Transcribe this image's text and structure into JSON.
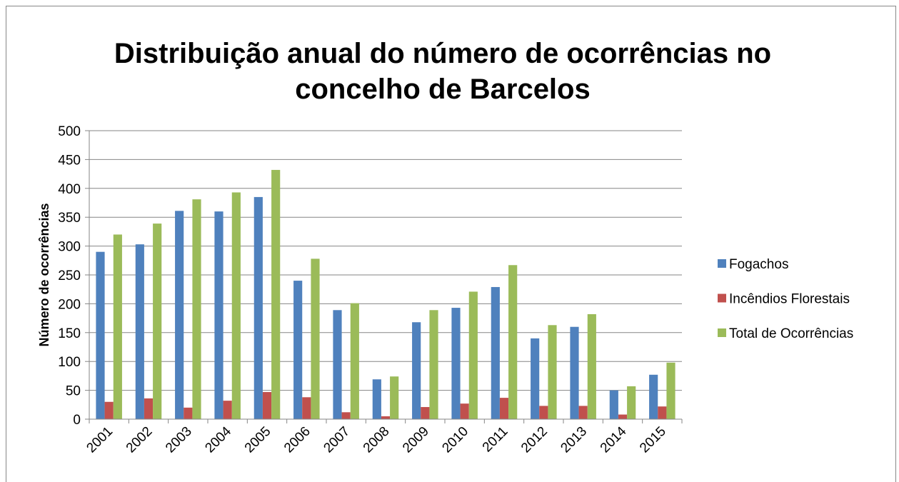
{
  "chart_data": {
    "type": "bar",
    "title": [
      "Distribuição anual do número de ocorrências no",
      "concelho de Barcelos"
    ],
    "y_axis_label": "Número de ocorrências",
    "categories": [
      "2001",
      "2002",
      "2003",
      "2004",
      "2005",
      "2006",
      "2007",
      "2008",
      "2009",
      "2010",
      "2011",
      "2012",
      "2013",
      "2014",
      "2015"
    ],
    "series": [
      {
        "name": "Fogachos",
        "color": "#4f81bd",
        "values": [
          290,
          303,
          361,
          360,
          385,
          240,
          189,
          69,
          168,
          193,
          229,
          140,
          160,
          50,
          77
        ]
      },
      {
        "name": "Incêndios Florestais",
        "color": "#c0504d",
        "values": [
          30,
          36,
          20,
          32,
          47,
          38,
          12,
          5,
          21,
          27,
          37,
          23,
          23,
          8,
          22
        ]
      },
      {
        "name": "Total de Ocorrências",
        "color": "#9bbb59",
        "values": [
          320,
          339,
          381,
          393,
          432,
          278,
          201,
          74,
          189,
          221,
          267,
          163,
          182,
          57,
          98
        ]
      }
    ],
    "ylim": [
      0,
      500
    ],
    "yticks": [
      0,
      50,
      100,
      150,
      200,
      250,
      300,
      350,
      400,
      450,
      500
    ],
    "grid": true,
    "legend": "right"
  }
}
